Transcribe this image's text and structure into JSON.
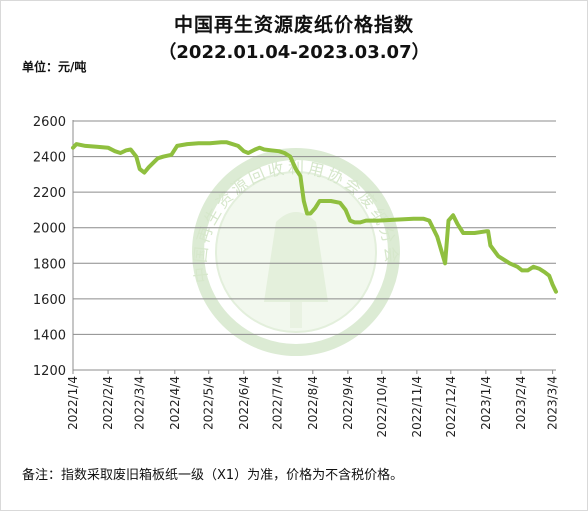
{
  "chart_data": {
    "type": "line",
    "title": "中国再生资源废纸价格指数",
    "subtitle": "（2022.01.04-2023.03.07）",
    "ylabel": "单位：元/吨",
    "note": "备注：指数采取废旧箱板纸一级（X1）为准，价格为不含税价格。",
    "watermark": "中国再生资源回收利用协会废纸分会",
    "ylim": [
      1200,
      2600
    ],
    "yticks": [
      1200,
      1400,
      1600,
      1800,
      2000,
      2200,
      2400,
      2600
    ],
    "xtick_labels": [
      "2022/1/4",
      "2022/2/4",
      "2022/3/4",
      "2022/4/4",
      "2022/5/4",
      "2022/6/4",
      "2022/7/4",
      "2022/8/4",
      "2022/9/4",
      "2022/10/4",
      "2022/11/4",
      "2022/12/4",
      "2023/1/4",
      "2023/2/4",
      "2023/3/4"
    ],
    "grid": true,
    "line_color": "#8fbf3f",
    "series": [
      {
        "name": "",
        "x": [
          "2022-01-04",
          "2022-01-07",
          "2022-01-15",
          "2022-01-25",
          "2022-02-04",
          "2022-02-10",
          "2022-02-15",
          "2022-02-20",
          "2022-02-24",
          "2022-03-01",
          "2022-03-04",
          "2022-03-08",
          "2022-03-12",
          "2022-03-20",
          "2022-03-25",
          "2022-04-01",
          "2022-04-06",
          "2022-04-15",
          "2022-04-25",
          "2022-05-05",
          "2022-05-15",
          "2022-05-20",
          "2022-05-30",
          "2022-06-04",
          "2022-06-08",
          "2022-06-14",
          "2022-06-18",
          "2022-06-22",
          "2022-06-28",
          "2022-07-05",
          "2022-07-10",
          "2022-07-15",
          "2022-07-20",
          "2022-07-24",
          "2022-07-27",
          "2022-07-30",
          "2022-08-02",
          "2022-08-06",
          "2022-08-10",
          "2022-08-20",
          "2022-08-28",
          "2022-09-02",
          "2022-09-06",
          "2022-09-10",
          "2022-09-15",
          "2022-09-20",
          "2022-10-01",
          "2022-10-15",
          "2022-11-01",
          "2022-11-10",
          "2022-11-15",
          "2022-11-22",
          "2022-11-29",
          "2022-12-02",
          "2022-12-06",
          "2022-12-10",
          "2022-12-15",
          "2022-12-25",
          "2023-01-04",
          "2023-01-06",
          "2023-01-08",
          "2023-01-15",
          "2023-01-25",
          "2023-02-01",
          "2023-02-05",
          "2023-02-10",
          "2023-02-15",
          "2023-02-20",
          "2023-02-25",
          "2023-03-01",
          "2023-03-04",
          "2023-03-07"
        ],
        "values": [
          2450,
          2470,
          2460,
          2455,
          2450,
          2430,
          2420,
          2435,
          2440,
          2400,
          2330,
          2310,
          2340,
          2390,
          2400,
          2410,
          2460,
          2470,
          2475,
          2475,
          2480,
          2480,
          2460,
          2430,
          2420,
          2440,
          2450,
          2440,
          2435,
          2430,
          2420,
          2400,
          2330,
          2290,
          2150,
          2080,
          2080,
          2110,
          2150,
          2150,
          2140,
          2100,
          2040,
          2030,
          2030,
          2040,
          2040,
          2045,
          2050,
          2050,
          2040,
          1950,
          1800,
          2040,
          2070,
          2020,
          1970,
          1970,
          1980,
          1980,
          1900,
          1840,
          1800,
          1780,
          1760,
          1760,
          1780,
          1770,
          1750,
          1730,
          1680,
          1640
        ]
      }
    ]
  }
}
